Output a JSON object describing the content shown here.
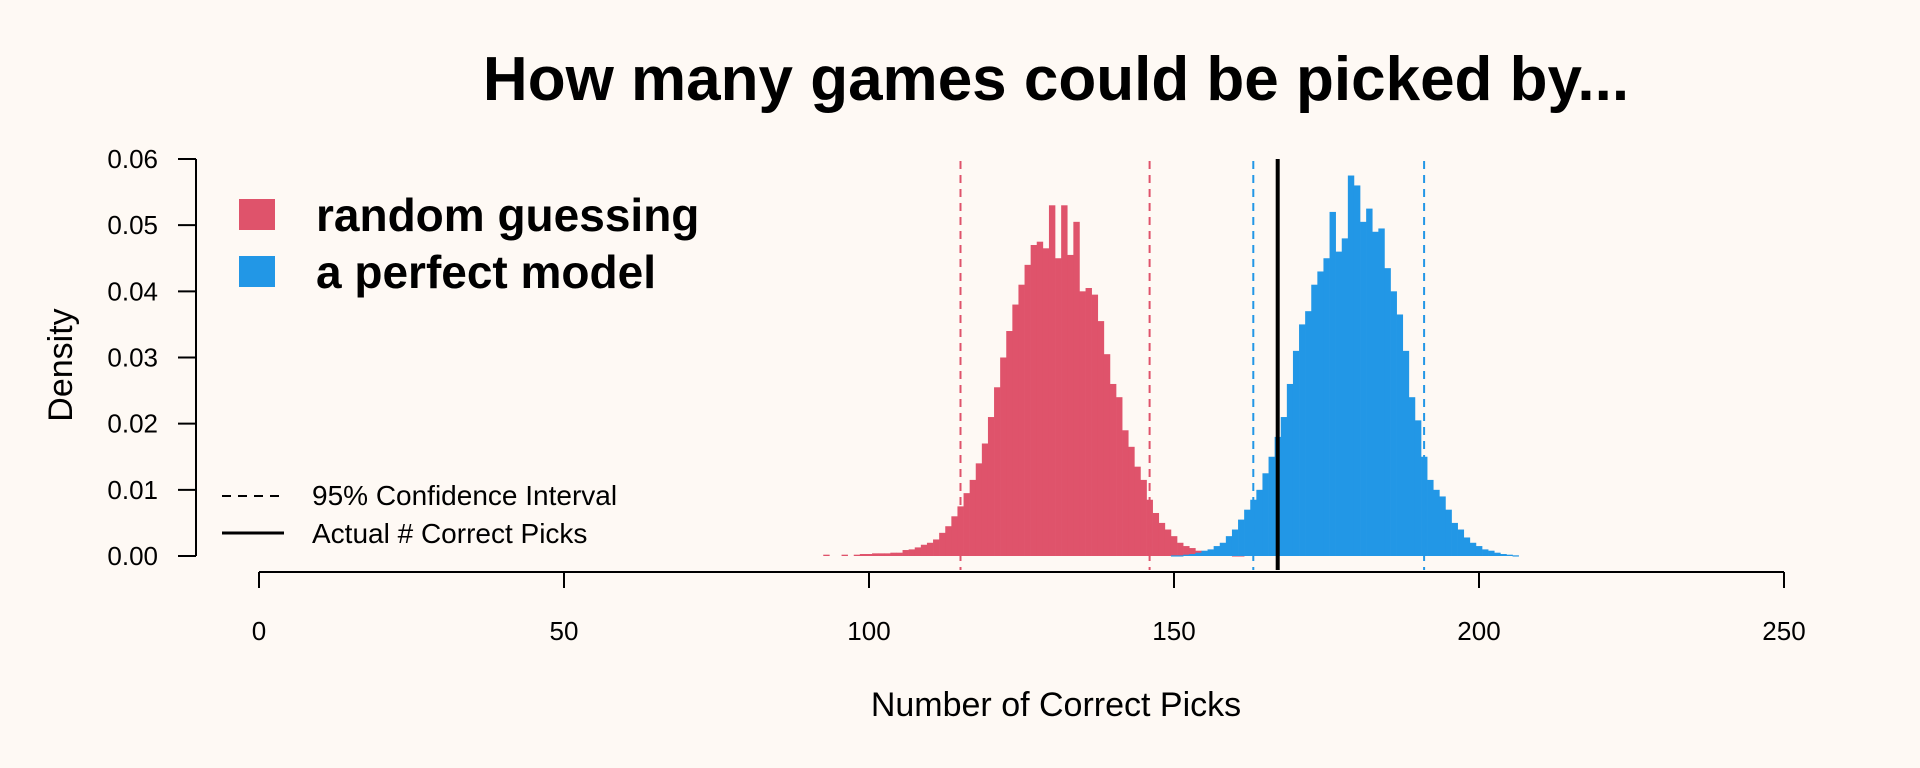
{
  "chart_data": {
    "type": "bar",
    "title": "How many games could be picked by...",
    "xlabel": "Number of Correct Picks",
    "ylabel": "Density",
    "xlim": [
      0,
      250
    ],
    "ylim": [
      0,
      0.06
    ],
    "x_ticks": [
      "0",
      "50",
      "100",
      "150",
      "200",
      "250"
    ],
    "y_ticks": [
      "0.00",
      "0.01",
      "0.02",
      "0.03",
      "0.04",
      "0.05",
      "0.06"
    ],
    "grid": false,
    "legend_placement": "top-left",
    "bin_width": 1,
    "series": [
      {
        "name": "random guessing",
        "color": "#df536b",
        "x": [
          93,
          96,
          98,
          99,
          100,
          101,
          102,
          103,
          104,
          105,
          106,
          107,
          108,
          109,
          110,
          111,
          112,
          113,
          114,
          115,
          116,
          117,
          118,
          119,
          120,
          121,
          122,
          123,
          124,
          125,
          126,
          127,
          128,
          129,
          130,
          131,
          132,
          133,
          134,
          135,
          136,
          137,
          138,
          139,
          140,
          141,
          142,
          143,
          144,
          145,
          146,
          147,
          148,
          149,
          150,
          151,
          152,
          153,
          154,
          155,
          156,
          157,
          158,
          159,
          160,
          161
        ],
        "density": [
          0.0002,
          0.0002,
          0.0002,
          0.0003,
          0.0003,
          0.0004,
          0.0004,
          0.0004,
          0.0005,
          0.0005,
          0.0009,
          0.001,
          0.0013,
          0.0017,
          0.002,
          0.0025,
          0.0035,
          0.0045,
          0.006,
          0.0075,
          0.0095,
          0.0115,
          0.014,
          0.017,
          0.021,
          0.0255,
          0.03,
          0.034,
          0.038,
          0.041,
          0.044,
          0.047,
          0.0475,
          0.0465,
          0.053,
          0.045,
          0.053,
          0.0455,
          0.0505,
          0.04,
          0.0405,
          0.0395,
          0.0355,
          0.0305,
          0.026,
          0.024,
          0.019,
          0.0165,
          0.0135,
          0.0115,
          0.0085,
          0.0065,
          0.005,
          0.004,
          0.003,
          0.002,
          0.0015,
          0.0012,
          0.0008,
          0.0006,
          0.0004,
          0.0003,
          0.0002,
          0.0002,
          0.0001,
          0.0001
        ]
      },
      {
        "name": "a perfect model",
        "color": "#2297e6",
        "x": [
          150,
          151,
          152,
          153,
          154,
          155,
          156,
          157,
          158,
          159,
          160,
          161,
          162,
          163,
          164,
          165,
          166,
          167,
          168,
          169,
          170,
          171,
          172,
          173,
          174,
          175,
          176,
          177,
          178,
          179,
          180,
          181,
          182,
          183,
          184,
          185,
          186,
          187,
          188,
          189,
          190,
          191,
          192,
          193,
          194,
          195,
          196,
          197,
          198,
          199,
          200,
          201,
          202,
          203,
          204,
          205,
          206
        ],
        "density": [
          0.0001,
          0.0001,
          0.0002,
          0.0003,
          0.0005,
          0.0008,
          0.001,
          0.0015,
          0.002,
          0.003,
          0.004,
          0.0055,
          0.007,
          0.0085,
          0.01,
          0.0125,
          0.015,
          0.018,
          0.021,
          0.026,
          0.031,
          0.035,
          0.037,
          0.041,
          0.043,
          0.045,
          0.052,
          0.046,
          0.048,
          0.0575,
          0.056,
          0.0505,
          0.0525,
          0.049,
          0.0495,
          0.0435,
          0.04,
          0.0365,
          0.031,
          0.024,
          0.0205,
          0.015,
          0.0115,
          0.01,
          0.009,
          0.007,
          0.005,
          0.004,
          0.0028,
          0.002,
          0.0015,
          0.001,
          0.0008,
          0.0005,
          0.0003,
          0.0002,
          0.0001
        ]
      }
    ],
    "lines": [
      {
        "name": "random guessing 95% CI lower",
        "x": 115,
        "style": "dashed",
        "color": "#df536b"
      },
      {
        "name": "random guessing 95% CI upper",
        "x": 146,
        "style": "dashed",
        "color": "#df536b"
      },
      {
        "name": "perfect model 95% CI lower",
        "x": 163,
        "style": "dashed",
        "color": "#2297e6"
      },
      {
        "name": "perfect model 95% CI upper",
        "x": 191,
        "style": "dashed",
        "color": "#2297e6"
      },
      {
        "name": "actual correct picks",
        "x": 167,
        "style": "solid",
        "color": "#000000"
      }
    ],
    "legend": {
      "series_entries": [
        "random guessing",
        "a perfect model"
      ],
      "line_entries": [
        {
          "label": "95% Confidence Interval",
          "style": "dashed"
        },
        {
          "label": "Actual # Correct Picks",
          "style": "solid"
        }
      ]
    }
  }
}
